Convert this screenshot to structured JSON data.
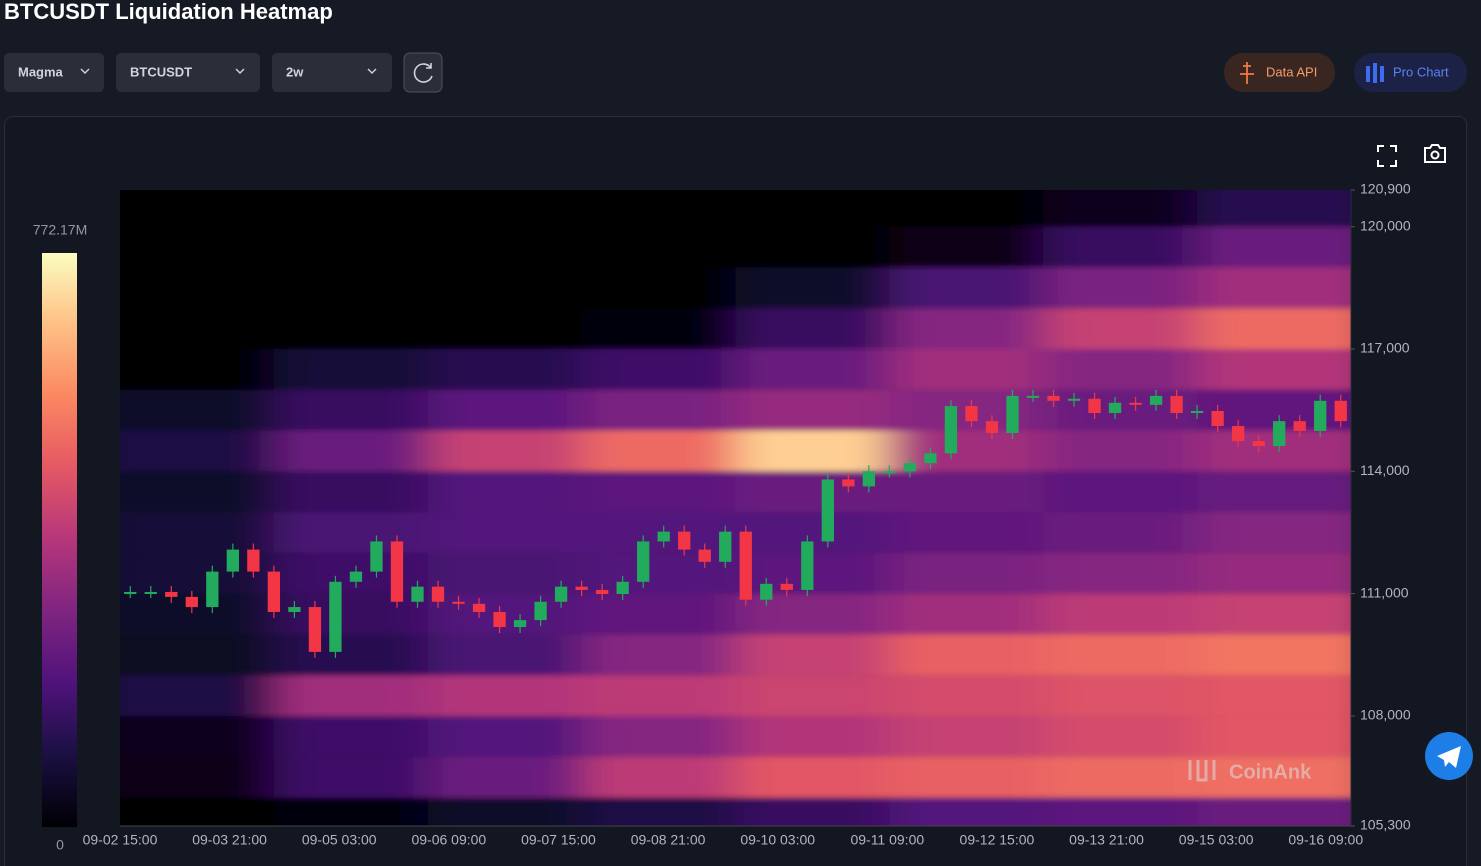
{
  "header": {
    "title": "BTCUSDT Liquidation Heatmap"
  },
  "controls": {
    "palette": "Magma",
    "symbol": "BTCUSDT",
    "range": "2w",
    "data_api": "Data API",
    "pro_chart": "Pro Chart"
  },
  "watermark": "CoinAnk",
  "chart_data": {
    "type": "heatmap",
    "colorbar": {
      "min": 0,
      "max": {
        "value": 772.17,
        "label": "772.17M"
      }
    },
    "ylim": [
      105300,
      120900
    ],
    "yticks": [
      {
        "value": 120900,
        "label": "120,900"
      },
      {
        "value": 120000,
        "label": "120,000"
      },
      {
        "value": 117000,
        "label": "117,000"
      },
      {
        "value": 114000,
        "label": "114,000"
      },
      {
        "value": 111000,
        "label": "111,000"
      },
      {
        "value": 108000,
        "label": "108,000"
      },
      {
        "value": 105300,
        "label": "105,300"
      }
    ],
    "xticks": [
      "09-02 15:00",
      "09-03 21:00",
      "09-05 03:00",
      "09-06 09:00",
      "09-07 15:00",
      "09-08 21:00",
      "09-10 03:00",
      "09-11 09:00",
      "09-12 15:00",
      "09-13 21:00",
      "09-15 03:00",
      "09-16 09:00"
    ],
    "heatmap": {
      "levels": [
        105500,
        106500,
        107500,
        108500,
        109500,
        110500,
        111500,
        112500,
        113500,
        114500,
        115500,
        116500,
        117500,
        118500,
        119500,
        120500
      ],
      "values": [
        [
          0,
          20,
          60,
          100,
          150,
          200,
          220,
          250
        ],
        [
          30,
          160,
          250,
          400,
          480,
          500,
          520,
          530
        ],
        [
          40,
          160,
          200,
          300,
          380,
          420,
          450,
          480
        ],
        [
          100,
          350,
          380,
          400,
          430,
          450,
          470,
          480
        ],
        [
          50,
          120,
          180,
          300,
          420,
          500,
          520,
          540
        ],
        [
          60,
          150,
          200,
          230,
          300,
          350,
          400,
          420
        ],
        [
          80,
          160,
          180,
          200,
          220,
          280,
          300,
          330
        ],
        [
          80,
          180,
          200,
          200,
          200,
          230,
          250,
          300
        ],
        [
          60,
          150,
          200,
          220,
          250,
          250,
          220,
          240
        ],
        [
          100,
          250,
          420,
          520,
          700,
          350,
          300,
          350
        ],
        [
          60,
          150,
          220,
          280,
          330,
          300,
          250,
          230
        ],
        [
          0,
          80,
          120,
          160,
          250,
          350,
          300,
          380
        ],
        [
          0,
          0,
          0,
          20,
          150,
          300,
          420,
          520
        ],
        [
          0,
          0,
          0,
          0,
          60,
          180,
          280,
          350
        ],
        [
          0,
          0,
          0,
          0,
          0,
          30,
          150,
          250
        ],
        [
          0,
          0,
          0,
          0,
          0,
          0,
          40,
          120
        ]
      ]
    },
    "candles": {
      "up_color": "#22ab5c",
      "down_color": "#f23645",
      "closes": [
        111040,
        111040,
        110920,
        110670,
        111540,
        112080,
        111540,
        110550,
        110670,
        109570,
        111290,
        111540,
        112280,
        110800,
        111170,
        110800,
        110750,
        110550,
        110180,
        110350,
        110800,
        111170,
        111090,
        110990,
        111290,
        112280,
        112520,
        112080,
        111780,
        112520,
        110850,
        111240,
        111090,
        112280,
        113800,
        113630,
        114000,
        114000,
        114200,
        114440,
        115600,
        115230,
        114940,
        115850,
        115850,
        115730,
        115780,
        115430,
        115680,
        115630,
        115850,
        115430,
        115480,
        115110,
        114740,
        114620,
        115230,
        114990,
        115730,
        115230
      ]
    }
  }
}
